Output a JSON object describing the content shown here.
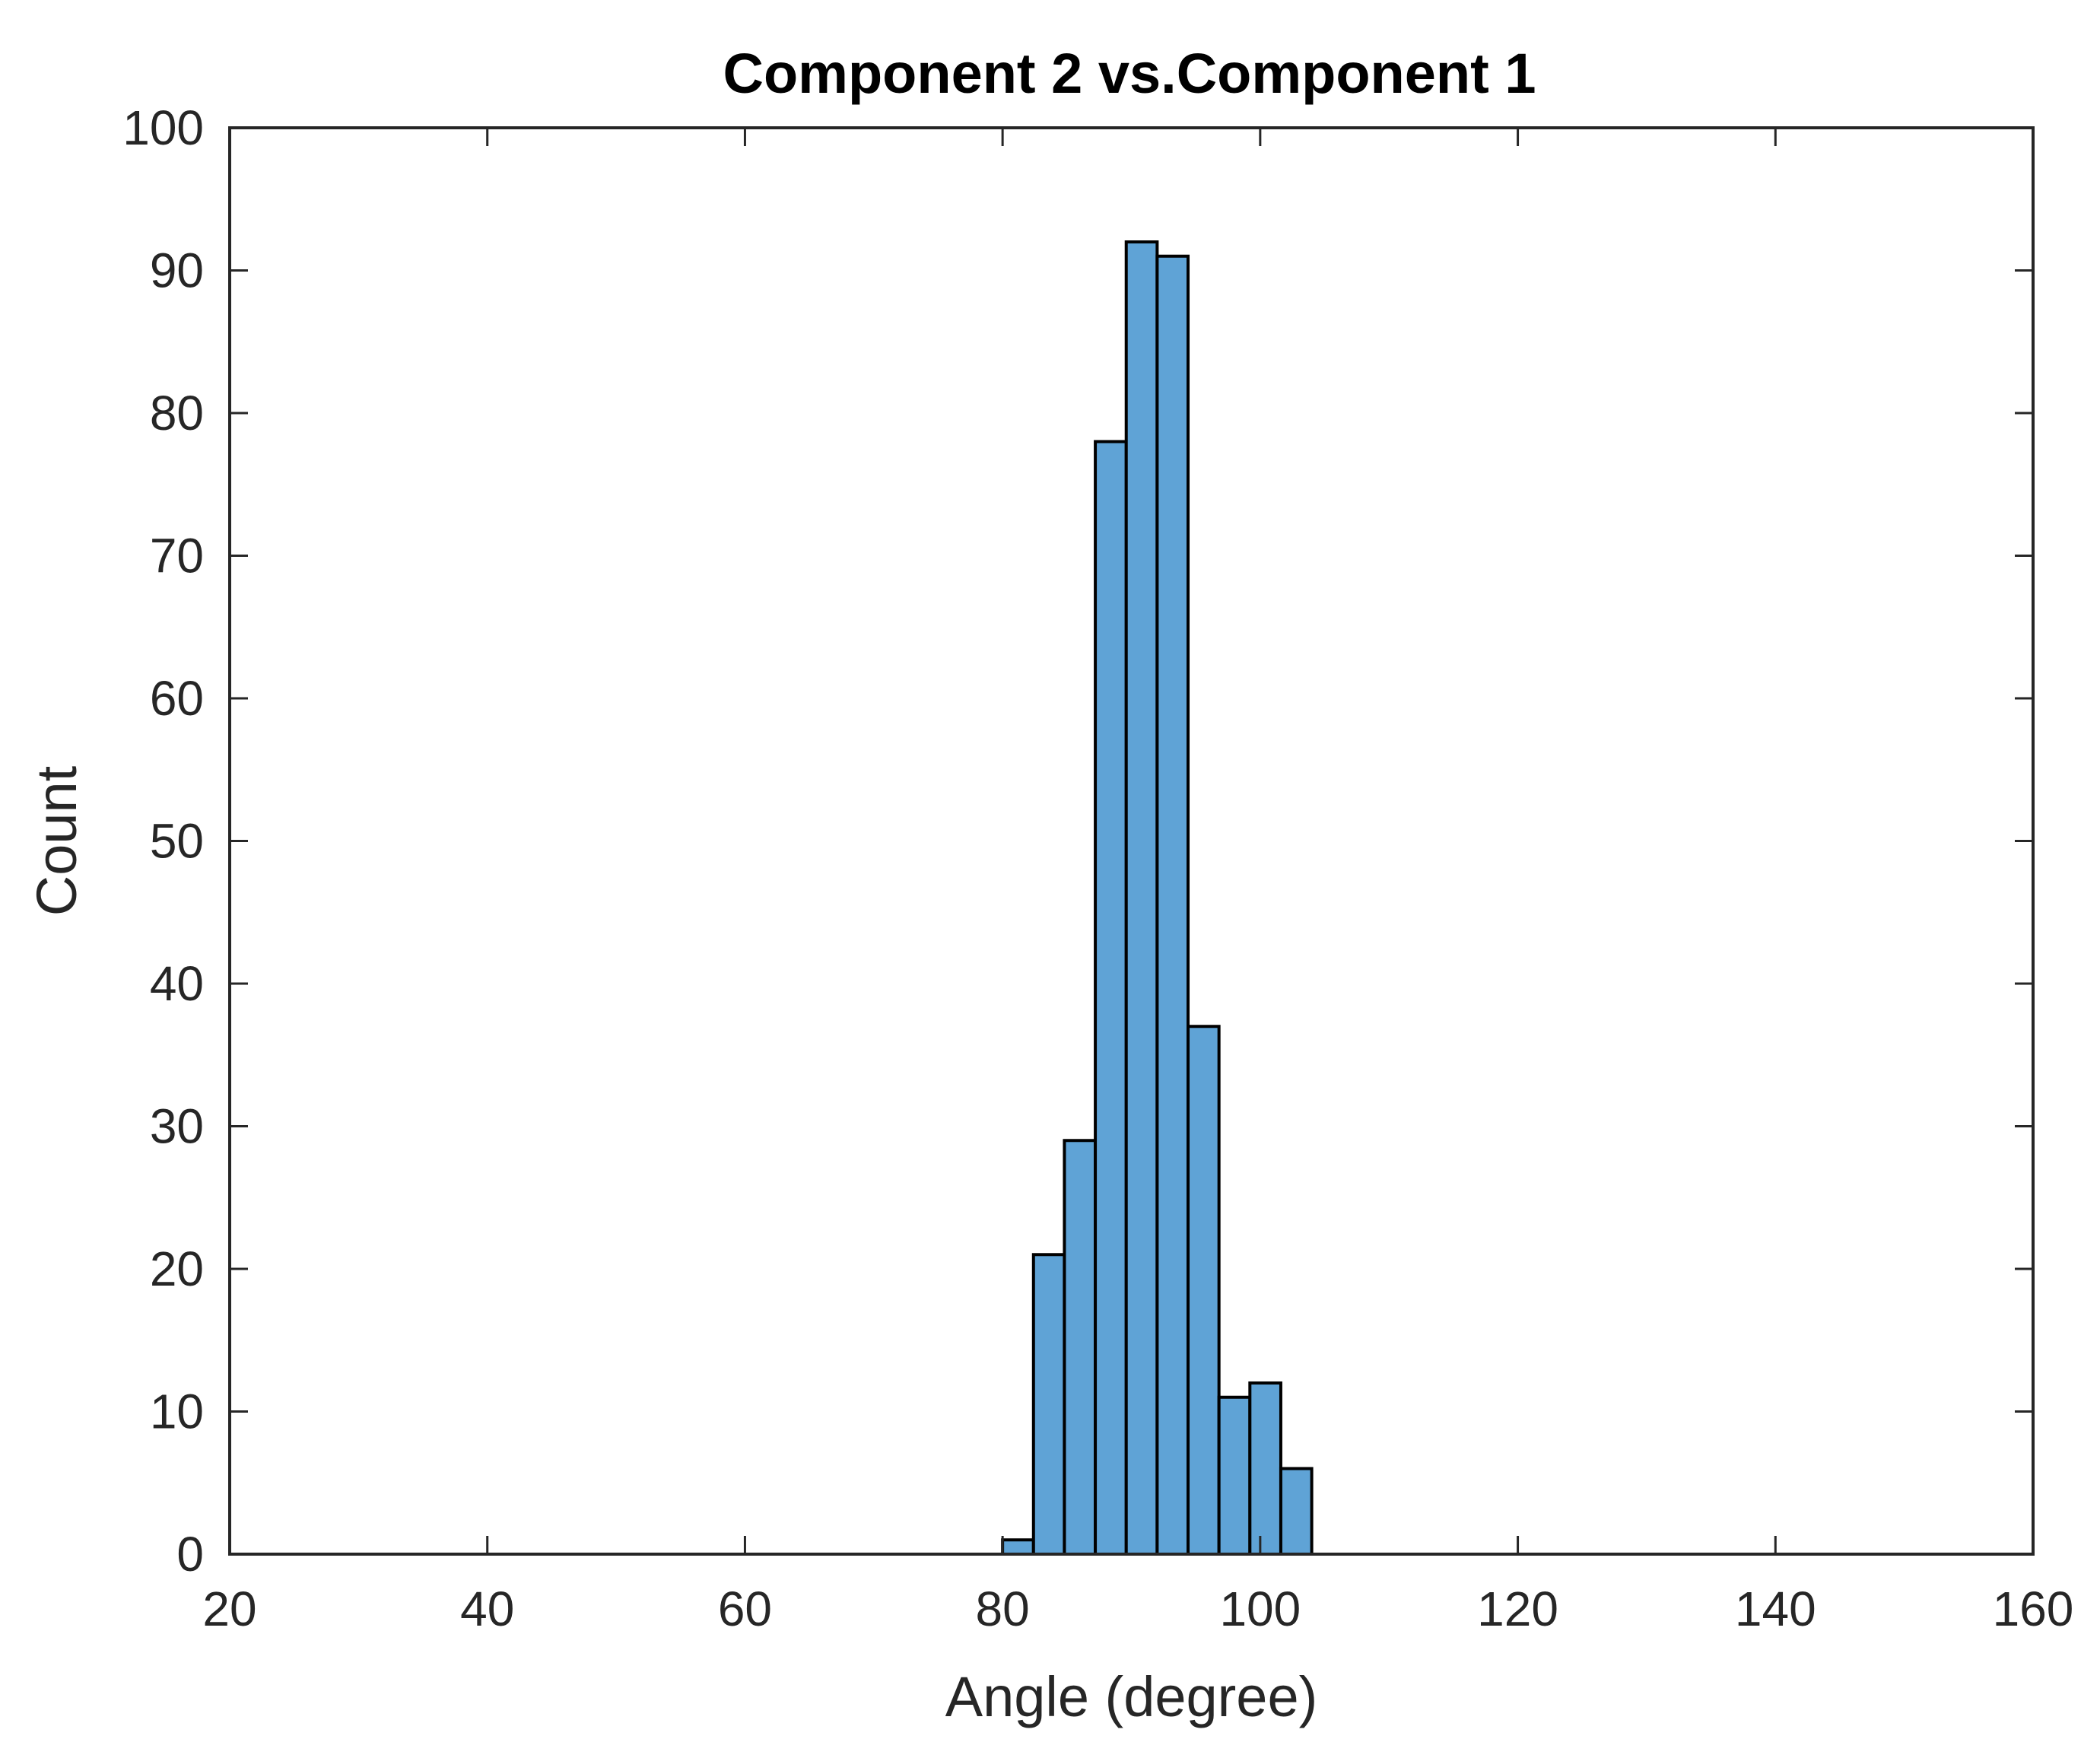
{
  "chart_data": {
    "type": "bar",
    "title": "Component 2 vs.Component 1",
    "xlabel": "Angle (degree)",
    "ylabel": "Count",
    "xlim": [
      20,
      160
    ],
    "ylim": [
      0,
      100
    ],
    "xticks": [
      "20",
      "40",
      "60",
      "80",
      "100",
      "120",
      "140",
      "160"
    ],
    "yticks": [
      "0",
      "10",
      "20",
      "30",
      "40",
      "50",
      "60",
      "70",
      "80",
      "90",
      "100"
    ],
    "bin_width": 2.4,
    "bins": [
      {
        "x": 80.0,
        "count": 1
      },
      {
        "x": 82.4,
        "count": 21
      },
      {
        "x": 84.8,
        "count": 29
      },
      {
        "x": 87.2,
        "count": 78
      },
      {
        "x": 89.6,
        "count": 92
      },
      {
        "x": 92.0,
        "count": 91
      },
      {
        "x": 94.4,
        "count": 37
      },
      {
        "x": 96.8,
        "count": 11
      },
      {
        "x": 99.2,
        "count": 12
      },
      {
        "x": 101.6,
        "count": 6
      }
    ],
    "bar_color": "#5FA3D6",
    "edge_color": "#000000",
    "grid": false,
    "legend": "none"
  }
}
